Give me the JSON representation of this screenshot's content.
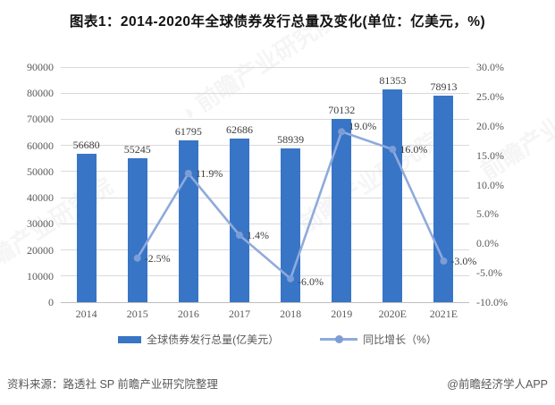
{
  "title": "图表1：2014-2020年全球债券发行总量及变化(单位：亿美元，%)",
  "chart_data": {
    "type": "bar+line combo",
    "title": "图表1：2014-2020年全球债券发行总量及变化(单位：亿美元，%)",
    "categories": [
      "2014",
      "2015",
      "2016",
      "2017",
      "2018",
      "2019",
      "2020E",
      "2021E"
    ],
    "series": [
      {
        "name": "全球债券发行总量(亿美元）",
        "type": "bar",
        "axis": "left",
        "values": [
          56680,
          55245,
          61795,
          62686,
          58939,
          70132,
          81353,
          78913
        ]
      },
      {
        "name": "同比增长（%）",
        "type": "line",
        "axis": "right",
        "values": [
          null,
          -2.5,
          11.9,
          1.4,
          -6.0,
          19.0,
          16.0,
          -3.0
        ],
        "point_labels": [
          "",
          "-2.5%",
          "11.9%",
          "1.4%",
          "-6.0%",
          "19.0%",
          "16.0%",
          "-3.0%"
        ]
      }
    ],
    "left_axis": {
      "min": 0,
      "max": 90000,
      "step": 10000,
      "tick_labels": [
        "0",
        "10000",
        "20000",
        "30000",
        "40000",
        "50000",
        "60000",
        "70000",
        "80000",
        "90000"
      ]
    },
    "right_axis": {
      "min": -10,
      "max": 30,
      "step": 5,
      "tick_labels": [
        "-10.0%",
        "-5.0%",
        "0.0%",
        "5.0%",
        "10.0%",
        "15.0%",
        "20.0%",
        "25.0%",
        "30.0%"
      ]
    },
    "grid": true,
    "legend_position": "bottom"
  },
  "legend": {
    "bar_label": "全球债券发行总量(亿美元）",
    "line_label": "同比增长（%）"
  },
  "footer": {
    "source": "资料来源：路透社 SP 前瞻产业研究院整理",
    "brand": "@前瞻经济学人APP"
  },
  "watermark": {
    "icon": "◑",
    "text": "前瞻产业研究院",
    "subtext": "F O R W A R D"
  },
  "colors": {
    "bar": "#3875C6",
    "line": "#8FAADC",
    "marker": "#7E9DD6",
    "grid": "#D9D9D9",
    "axis": "#BFBFBF",
    "tick_text": "#595959",
    "data_label_text": "#3D3D3D"
  }
}
